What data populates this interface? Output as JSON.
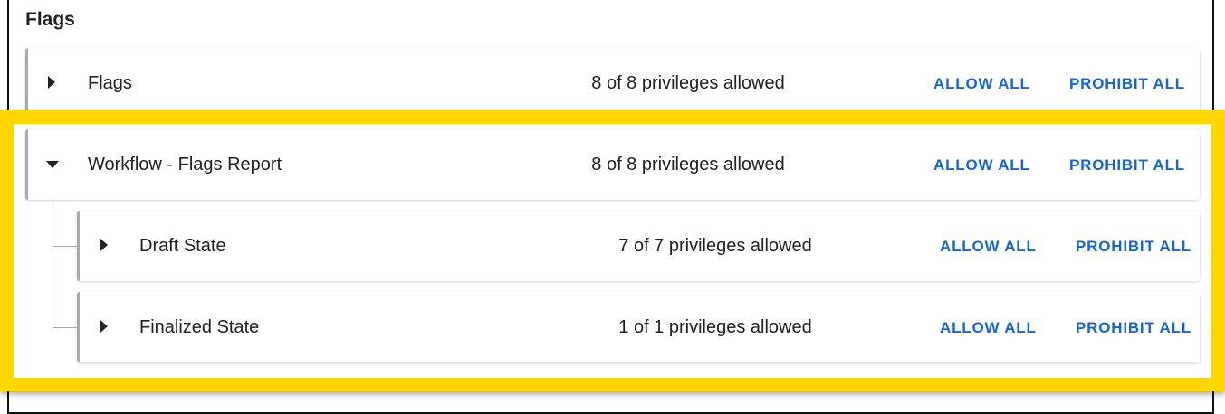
{
  "section_title": "Flags",
  "rows": [
    {
      "name": "Flags",
      "count": "8 of 8 privileges allowed",
      "allow": "ALLOW ALL",
      "prohibit": "PROHIBIT ALL",
      "expanded": false
    },
    {
      "name": "Workflow - Flags Report",
      "count": "8 of 8 privileges allowed",
      "allow": "ALLOW ALL",
      "prohibit": "PROHIBIT ALL",
      "expanded": true
    },
    {
      "name": "Draft State",
      "count": "7 of 7 privileges allowed",
      "allow": "ALLOW ALL",
      "prohibit": "PROHIBIT ALL",
      "expanded": false
    },
    {
      "name": "Finalized State",
      "count": "1 of 1 privileges allowed",
      "allow": "ALLOW ALL",
      "prohibit": "PROHIBIT ALL",
      "expanded": false
    }
  ],
  "colors": {
    "highlight": "#ffd600",
    "link": "#1565d8"
  }
}
